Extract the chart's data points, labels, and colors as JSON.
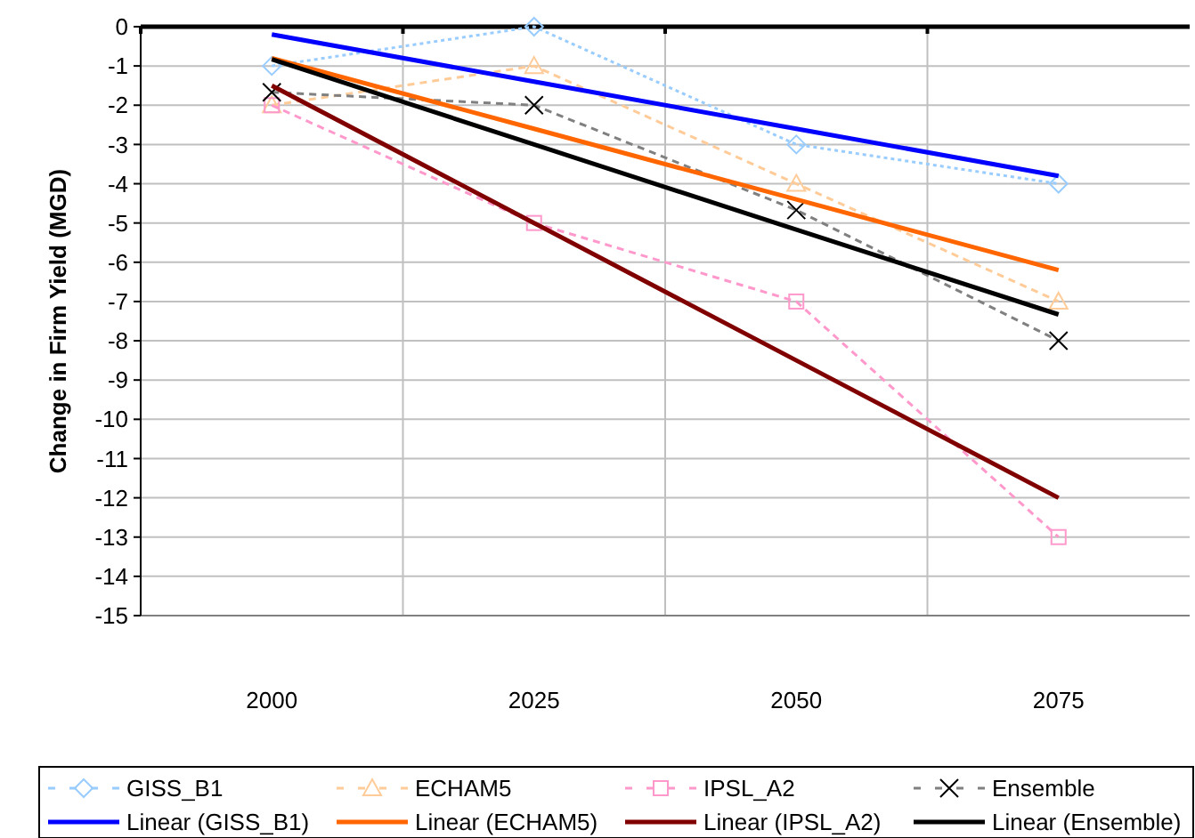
{
  "chart_data": {
    "type": "line",
    "ylabel": "Change in Firm Yield (MGD)",
    "categories": [
      "2000",
      "2025",
      "2050",
      "2075"
    ],
    "ylim": [
      -15,
      0
    ],
    "yticks": [
      -15,
      -14,
      -13,
      -12,
      -11,
      -10,
      -9,
      -8,
      -7,
      -6,
      -5,
      -4,
      -3,
      -2,
      -1,
      0
    ],
    "grid": true,
    "legend": "bottom",
    "series": [
      {
        "name": "GISS_B1",
        "color": "#99ccff",
        "values": [
          -1,
          0,
          -3,
          -4
        ],
        "marker": "diamond",
        "line_style": "dotted"
      },
      {
        "name": "ECHAM5",
        "color": "#ffcc99",
        "values": [
          -2,
          -1,
          -4,
          -7
        ],
        "marker": "triangle",
        "line_style": "dashed"
      },
      {
        "name": "IPSL_A2",
        "color": "#ff99cc",
        "values": [
          -2,
          -5,
          -7,
          -13
        ],
        "marker": "square",
        "line_style": "dashed"
      },
      {
        "name": "Ensemble",
        "color": "#808080",
        "values": [
          -1.67,
          -2,
          -4.67,
          -8
        ],
        "marker": "cross",
        "line_style": "dashed"
      },
      {
        "name": "Linear (GISS_B1)",
        "color": "#0000ff",
        "values": [
          -0.2,
          -1.4,
          -2.6,
          -3.8
        ],
        "marker": "none",
        "line_style": "solid"
      },
      {
        "name": "Linear (ECHAM5)",
        "color": "#ff6600",
        "values": [
          -0.8,
          -2.6,
          -4.4,
          -6.2
        ],
        "marker": "none",
        "line_style": "solid"
      },
      {
        "name": "Linear (IPSL_A2)",
        "color": "#800000",
        "values": [
          -1.5,
          -5,
          -8.5,
          -12
        ],
        "marker": "none",
        "line_style": "solid"
      },
      {
        "name": "Linear (Ensemble)",
        "color": "#000000",
        "values": [
          -0.83,
          -3,
          -5.17,
          -7.33
        ],
        "marker": "none",
        "line_style": "solid"
      }
    ]
  }
}
